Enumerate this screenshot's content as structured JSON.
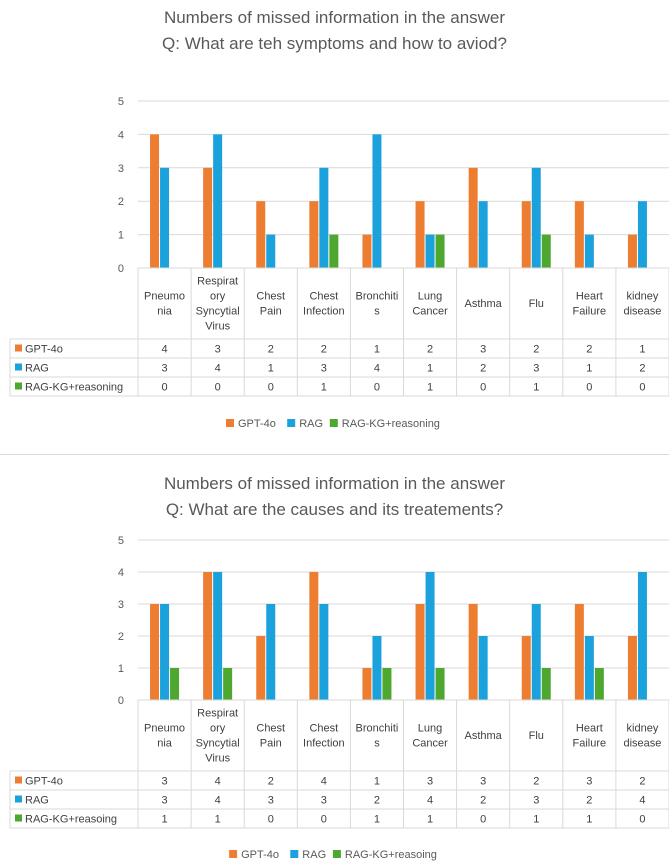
{
  "colors": {
    "gpt": "#ed7d31",
    "rag": "#1ba1dc",
    "kg": "#4ea72e",
    "grid": "#d9d9d9",
    "table": "#d9d9d9"
  },
  "chart_data": [
    {
      "type": "bar",
      "title_lines": [
        "Numbers of missed information in the answer",
        "Q: What are teh symptoms and how to aviod?"
      ],
      "categories": [
        [
          "Pneumo",
          "nia"
        ],
        [
          "Respirat",
          "ory",
          "Syncytial",
          "Virus"
        ],
        [
          "Chest",
          "Pain"
        ],
        [
          "Chest",
          "Infection"
        ],
        [
          "Bronchiti",
          "s"
        ],
        [
          "Lung",
          "Cancer"
        ],
        [
          "Asthma"
        ],
        [
          "Flu"
        ],
        [
          "Heart",
          "Failure"
        ],
        [
          "kidney",
          "disease"
        ]
      ],
      "series": [
        {
          "name": "GPT-4o",
          "color_key": "gpt",
          "values": [
            4,
            3,
            2,
            2,
            1,
            2,
            3,
            2,
            2,
            1
          ]
        },
        {
          "name": "RAG",
          "color_key": "rag",
          "values": [
            3,
            4,
            1,
            3,
            4,
            1,
            2,
            3,
            1,
            2
          ]
        },
        {
          "name": "RAG-KG+reasoning",
          "color_key": "kg",
          "values": [
            0,
            0,
            0,
            1,
            0,
            1,
            0,
            1,
            0,
            0
          ]
        }
      ],
      "yticks": [
        "0",
        "1",
        "2",
        "3",
        "4",
        "5"
      ],
      "ylim": [
        0,
        5
      ],
      "grid": true,
      "data_table": true,
      "legend": "bottom"
    },
    {
      "type": "bar",
      "title_lines": [
        "Numbers of missed information in the answer",
        "Q: What are the causes and its treatements?"
      ],
      "categories": [
        [
          "Pneumo",
          "nia"
        ],
        [
          "Respirat",
          "ory",
          "Syncytial",
          "Virus"
        ],
        [
          "Chest",
          "Pain"
        ],
        [
          "Chest",
          "Infection"
        ],
        [
          "Bronchiti",
          "s"
        ],
        [
          "Lung",
          "Cancer"
        ],
        [
          "Asthma"
        ],
        [
          "Flu"
        ],
        [
          "Heart",
          "Failure"
        ],
        [
          "kidney",
          "disease"
        ]
      ],
      "series": [
        {
          "name": "GPT-4o",
          "color_key": "gpt",
          "values": [
            3,
            4,
            2,
            4,
            1,
            3,
            3,
            2,
            3,
            2
          ]
        },
        {
          "name": "RAG",
          "color_key": "rag",
          "values": [
            3,
            4,
            3,
            3,
            2,
            4,
            2,
            3,
            2,
            4
          ]
        },
        {
          "name": "RAG-KG+reasoing",
          "color_key": "kg",
          "values": [
            1,
            1,
            0,
            0,
            1,
            1,
            0,
            1,
            1,
            0
          ]
        }
      ],
      "yticks": [
        "0",
        "1",
        "2",
        "3",
        "4",
        "5"
      ],
      "ylim": [
        0,
        5
      ],
      "grid": true,
      "data_table": true,
      "legend": "bottom"
    }
  ]
}
